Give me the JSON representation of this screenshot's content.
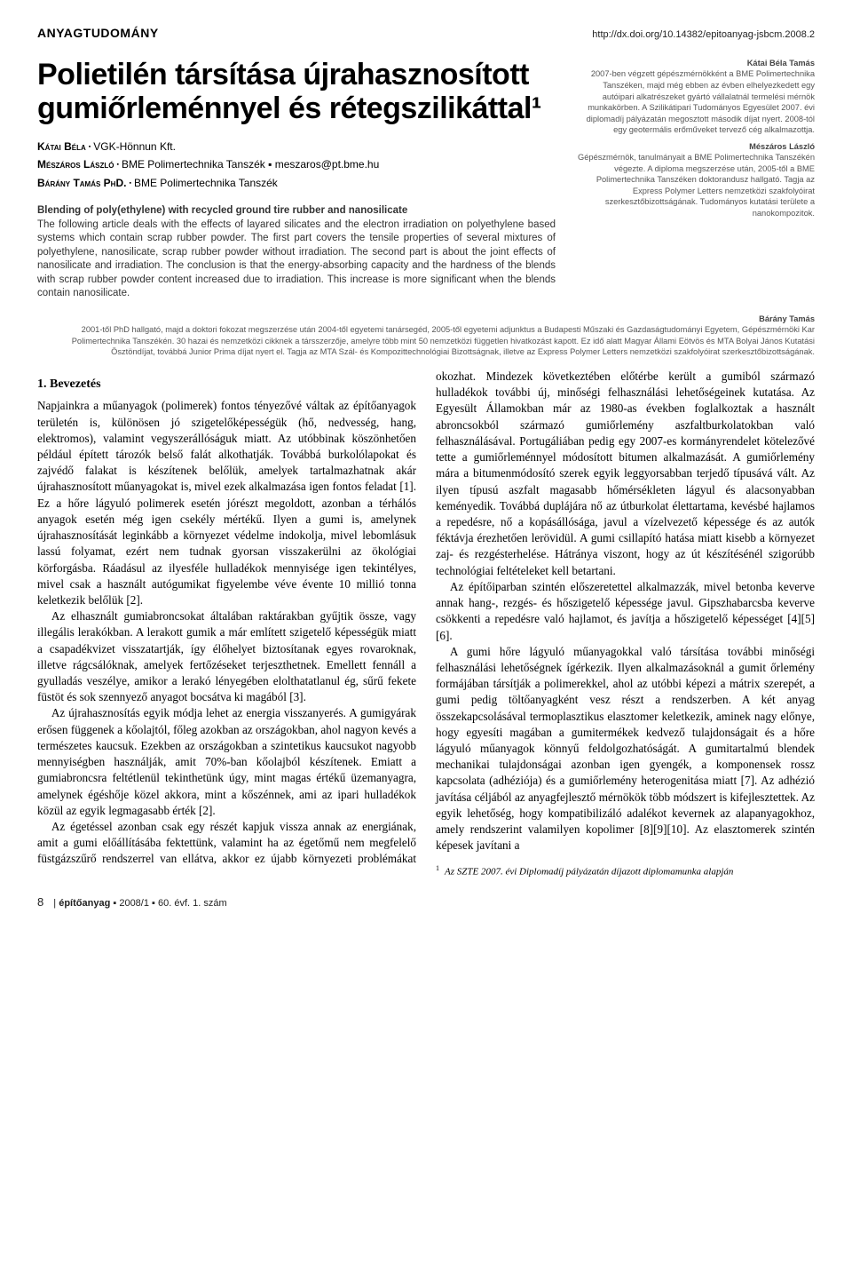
{
  "header": {
    "section": "ANYAGTUDOMÁNY",
    "doi": "http://dx.doi.org/10.14382/epitoanyag-jsbcm.2008.2"
  },
  "title": "Polietilén társítása újrahasznosított gumiőrleménnyel és rétegszilikáttal¹",
  "authors": [
    {
      "name": "Kátai Béla",
      "aff": "VGK-Hönnun Kft."
    },
    {
      "name": "Mészáros László",
      "aff": "BME Polimertechnika Tanszék ▪ meszaros@pt.bme.hu"
    },
    {
      "name": "Bárány Tamás PhD.",
      "aff": "BME Polimertechnika Tanszék"
    }
  ],
  "abstract": {
    "title": "Blending of poly(ethylene) with recycled ground tire rubber and nanosilicate",
    "body": "The following article deals with the effects of layared silicates and the electron irradiation on polyethylene based systems which contain scrap rubber powder. The first part covers the tensile properties of several mixtures of polyethylene, nanosilicate, scrap rubber powder without irradiation. The second part is about the joint effects of nanosilicate and irradiation. The conclusion is that the energy-absorbing capacity and the hardness of the blends with scrap rubber powder content increased due to irradiation. This increase is more significant when the blends contain nanosilicate."
  },
  "bios": {
    "b1": {
      "name": "Kátai Béla Tamás",
      "text": "2007-ben végzett gépészmérnökként a BME Polimertechnika Tanszéken, majd még ebben az évben elhelyezkedett egy autóipari alkatrészeket gyártó vállalatnál termelési mérnök munkakörben. A Szilikátipari Tudományos Egyesület 2007. évi diplomadíj pályázatán megosztott második díjat nyert. 2008-tól egy geotermális erőműveket tervező cég alkalmazottja."
    },
    "b2": {
      "name": "Mészáros László",
      "text": "Gépészmérnök, tanulmányait a BME Polimertechnika Tanszékén végezte. A diploma megszerzése után, 2005-től a BME Polimertechnika Tanszéken doktorandusz hallgató. Tagja az Express Polymer Letters nemzetközi szakfolyóirat szerkesztőbizottságának. Tudományos kutatási területe a nanokompozitok."
    },
    "b3": {
      "name": "Bárány Tamás",
      "text": "2001-től PhD hallgató, majd a doktori fokozat megszerzése után 2004-től egyetemi tanársegéd, 2005-től egyetemi adjunktus a Budapesti Műszaki és Gazdaságtudományi Egyetem, Gépészmérnöki Kar Polimertechnika Tanszékén. 30 hazai és nemzetközi cikknek a társszerzője, amelyre több mint 50 nemzetközi független hivatkozást kapott. Ez idő alatt Magyar Állami Eötvös és MTA Bolyai János Kutatási Ösztöndíjat, továbbá Junior Prima díjat nyert el. Tagja az MTA Szál- és Kompozittechnológiai Bizottságnak, illetve az Express Polymer Letters nemzetközi szakfolyóirat szerkesztőbizottságának."
    }
  },
  "section_heading": "1. Bevezetés",
  "paragraphs": {
    "p1": "Napjainkra a műanyagok (polimerek) fontos tényezővé váltak az építőanyagok területén is, különösen jó szigetelőképességük (hő, nedvesség, hang, elektromos), valamint vegyszerállóságuk miatt. Az utóbbinak köszönhetően például épített tározók belső falát alkothatják. Továbbá burkolólapokat és zajvédő falakat is készítenek belőlük, amelyek tartalmazhatnak akár újrahasznosított műanyagokat is, mivel ezek alkalmazása igen fontos feladat [1]. Ez a hőre lágyuló polimerek esetén jórészt megoldott, azonban a térhálós anyagok esetén még igen csekély mértékű. Ilyen a gumi is, amelynek újrahasznosítását leginkább a környezet védelme indokolja, mivel lebomlásuk lassú folyamat, ezért nem tudnak gyorsan visszakerülni az ökológiai körforgásba. Ráadásul az ilyesféle hulladékok mennyisége igen tekintélyes, mivel csak a használt autógumikat figyelembe véve évente 10 millió tonna keletkezik belőlük [2].",
    "p2": "Az elhasznált gumiabroncsokat általában raktárakban gyűjtik össze, vagy illegális lerakókban. A lerakott gumik a már említett szigetelő képességük miatt a csapadékvizet visszatartják, így élőhelyet biztosítanak egyes rovaroknak, illetve rágcsálóknak, amelyek fertőzéseket terjeszthetnek. Emellett fennáll a gyulladás veszélye, amikor a lerakó lényegében elolthatatlanul ég, sűrű fekete füstöt és sok szennyező anyagot bocsátva ki magából [3].",
    "p3": "Az újrahasznosítás egyik módja lehet az energia visszanyerés. A gumigyárak erősen függenek a kőolajtól, főleg azokban az országokban, ahol nagyon kevés a természetes kaucsuk. Ezekben az országokban a szintetikus kaucsukot nagyobb mennyiségben használják, amit 70%-ban kőolajból készítenek. Emiatt a gumiabroncsra feltétlenül tekinthetünk úgy, mint magas értékű üzemanyagra, amelynek égéshője közel akkora, mint a kőszénnek, ami az ipari hulladékok közül az egyik legmagasabb érték [2].",
    "p4": "Az égetéssel azonban csak egy részét kapjuk vissza annak az energiának, amit a gumi előállításába fektettünk, valamint ha az égetőmű nem megfelelő füstgázszűrő rendszerrel van ellátva, akkor ez újabb környezeti problémákat okozhat. Mindezek következtében előtérbe került a gumiból származó hulladékok további új, minőségi felhasználási lehetőségeinek kutatása. Az Egyesült Államokban már az 1980-as években foglalkoztak a használt abroncsokból származó gumiőrlemény aszfaltburkolatokban való felhasználásával. Portugáliában pedig egy 2007-es kormányrendelet kötelezővé tette a gumiőrleménnyel módosított bitumen alkalmazását. A gumiőrlemény mára a bitumenmódosító szerek egyik leggyorsabban terjedő típusává vált. Az ilyen típusú aszfalt magasabb hőmérsékleten lágyul és alacsonyabban keményedik. Továbbá duplájára nő az útburkolat élettartama, kevésbé hajlamos a repedésre, nő a kopásállósága, javul a vízelvezető képessége és az autók féktávja érezhetően lerövidül. A gumi csillapító hatása miatt kisebb a környezet zaj- és rezgésterhelése. Hátránya viszont, hogy az út készítésénél szigorúbb technológiai feltételeket kell betartani.",
    "p5": "Az építőiparban szintén előszeretettel alkalmazzák, mivel betonba keverve annak hang-, rezgés- és hőszigetelő képessége javul. Gipszhabarcsba keverve csökkenti a repedésre való hajlamot, és javítja a hőszigetelő képességet [4][5][6].",
    "p6": "A gumi hőre lágyuló műanyagokkal való társítása további minőségi felhasználási lehetőségnek ígérkezik. Ilyen alkalmazásoknál a gumit őrlemény formájában társítják a polimerekkel, ahol az utóbbi képezi a mátrix szerepét, a gumi pedig töltőanyagként vesz részt a rendszerben. A két anyag összekapcsolásával termoplasztikus elasztomer keletkezik, aminek nagy előnye, hogy egyesíti magában a gumitermékek kedvező tulajdonságait és a hőre lágyuló műanyagok könnyű feldolgozhatóságát. A gumitartalmú blendek mechanikai tulajdonságai azonban igen gyengék, a komponensek rossz kapcsolata (adhéziója) és a gumiőrlemény heterogenitása miatt [7]. Az adhézió javítása céljából az anyagfejlesztő mérnökök több módszert is kifejlesztettek. Az egyik lehetőség, hogy kompatibilizáló adalékot kevernek az alapanyagokhoz, amely rendszerint valamilyen kopolimer [8][9][10]. Az elasztomerek szintén képesek javítani a"
  },
  "footnote": "Az SZTE 2007. évi Diplomadíj pályázatán díjazott diplomamunka alapján",
  "footer": {
    "page": "8",
    "mag": "építőanyag",
    "issue": "2008/1 ▪ 60. évf. 1. szám"
  }
}
